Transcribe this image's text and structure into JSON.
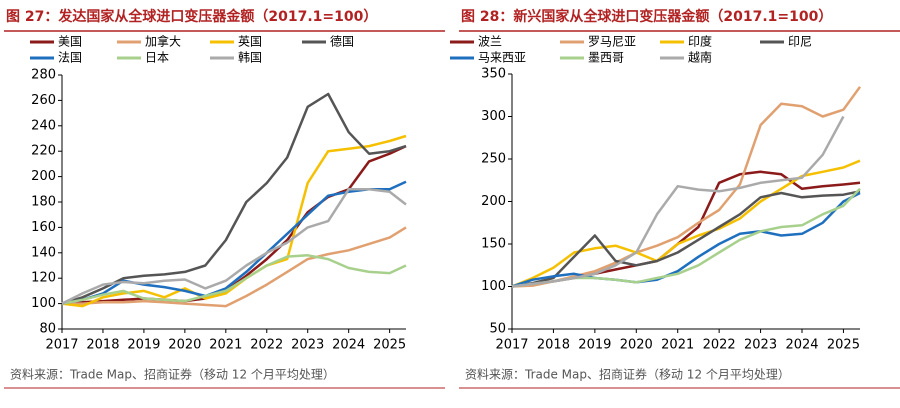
{
  "chart_data": [
    {
      "type": "line",
      "title": "图 27：发达国家从全球进口变压器金额（2017.1=100）",
      "source": "资料来源：Trade Map、招商证券（移动 12 个月平均处理）",
      "x": [
        2017,
        2017.5,
        2018,
        2018.5,
        2019,
        2019.5,
        2020,
        2020.5,
        2021,
        2021.5,
        2022,
        2022.5,
        2023,
        2023.5,
        2024,
        2024.5,
        2025,
        2025.4
      ],
      "xlim": [
        2017,
        2025.4
      ],
      "xticks": [
        2017,
        2018,
        2019,
        2020,
        2021,
        2022,
        2023,
        2024,
        2025
      ],
      "ylim": [
        80,
        280
      ],
      "yticks": [
        80,
        100,
        120,
        140,
        160,
        180,
        200,
        220,
        240,
        260,
        280
      ],
      "series": [
        {
          "name": "美国",
          "color": "#8b1a1a",
          "values": [
            100,
            101,
            102,
            103,
            104,
            103,
            102,
            104,
            110,
            122,
            135,
            150,
            172,
            184,
            190,
            212,
            218,
            224
          ]
        },
        {
          "name": "加拿大",
          "color": "#e0a070",
          "values": [
            100,
            100,
            101,
            101,
            102,
            101,
            100,
            99,
            98,
            106,
            115,
            125,
            135,
            139,
            142,
            147,
            152,
            160
          ]
        },
        {
          "name": "英国",
          "color": "#f5c000",
          "values": [
            100,
            98,
            105,
            108,
            110,
            105,
            112,
            104,
            108,
            120,
            130,
            135,
            195,
            220,
            222,
            224,
            228,
            232
          ]
        },
        {
          "name": "德国",
          "color": "#555555",
          "values": [
            100,
            105,
            112,
            120,
            122,
            123,
            125,
            130,
            150,
            180,
            195,
            215,
            255,
            265,
            235,
            218,
            220,
            224
          ]
        },
        {
          "name": "法国",
          "color": "#1f6fbf",
          "values": [
            100,
            103,
            108,
            118,
            115,
            113,
            110,
            106,
            112,
            125,
            140,
            155,
            170,
            185,
            188,
            190,
            190,
            196
          ]
        },
        {
          "name": "日本",
          "color": "#a8d08d",
          "values": [
            100,
            103,
            107,
            110,
            104,
            103,
            102,
            106,
            110,
            120,
            130,
            137,
            138,
            135,
            128,
            125,
            124,
            130
          ]
        },
        {
          "name": "韩国",
          "color": "#aaaaaa",
          "values": [
            100,
            108,
            115,
            117,
            116,
            118,
            119,
            112,
            118,
            130,
            140,
            148,
            160,
            165,
            190,
            190,
            188,
            178
          ]
        }
      ]
    },
    {
      "type": "line",
      "title": "图 28：新兴国家从全球进口变压器金额（2017.1=100）",
      "source": "资料来源：Trade Map、招商证券（移动 12 个月平均处理）",
      "x": [
        2017,
        2017.5,
        2018,
        2018.5,
        2019,
        2019.5,
        2020,
        2020.5,
        2021,
        2021.5,
        2022,
        2022.5,
        2023,
        2023.5,
        2024,
        2024.5,
        2025,
        2025.4
      ],
      "xlim": [
        2017,
        2025.4
      ],
      "xticks": [
        2017,
        2018,
        2019,
        2020,
        2021,
        2022,
        2023,
        2024,
        2025
      ],
      "ylim": [
        50,
        350
      ],
      "yticks": [
        50,
        100,
        150,
        200,
        250,
        300,
        350
      ],
      "series": [
        {
          "name": "波兰",
          "color": "#8b1a1a",
          "values": [
            100,
            103,
            106,
            110,
            115,
            120,
            125,
            130,
            150,
            170,
            222,
            232,
            235,
            232,
            215,
            218,
            220,
            222
          ]
        },
        {
          "name": "罗马尼亚",
          "color": "#e0a070",
          "values": [
            100,
            101,
            106,
            112,
            118,
            128,
            140,
            148,
            158,
            175,
            190,
            220,
            290,
            315,
            312,
            300,
            308,
            335
          ]
        },
        {
          "name": "印度",
          "color": "#f5c000",
          "values": [
            100,
            110,
            122,
            140,
            145,
            148,
            140,
            130,
            150,
            160,
            168,
            180,
            200,
            215,
            230,
            235,
            240,
            248
          ]
        },
        {
          "name": "印尼",
          "color": "#555555",
          "values": [
            100,
            104,
            110,
            135,
            160,
            130,
            125,
            130,
            140,
            155,
            170,
            185,
            205,
            210,
            205,
            207,
            208,
            212
          ]
        },
        {
          "name": "马来西亚",
          "color": "#1f6fbf",
          "values": [
            100,
            108,
            112,
            115,
            110,
            108,
            105,
            108,
            118,
            135,
            150,
            162,
            165,
            160,
            162,
            175,
            200,
            210
          ]
        },
        {
          "name": "墨西哥",
          "color": "#a8d08d",
          "values": [
            100,
            103,
            106,
            110,
            110,
            108,
            105,
            110,
            115,
            125,
            140,
            155,
            165,
            170,
            172,
            185,
            195,
            215
          ]
        },
        {
          "name": "越南",
          "color": "#aaaaaa",
          "values": [
            100,
            103,
            106,
            110,
            115,
            125,
            140,
            185,
            218,
            214,
            212,
            216,
            222,
            225,
            228,
            255,
            300,
            null
          ]
        }
      ]
    }
  ]
}
